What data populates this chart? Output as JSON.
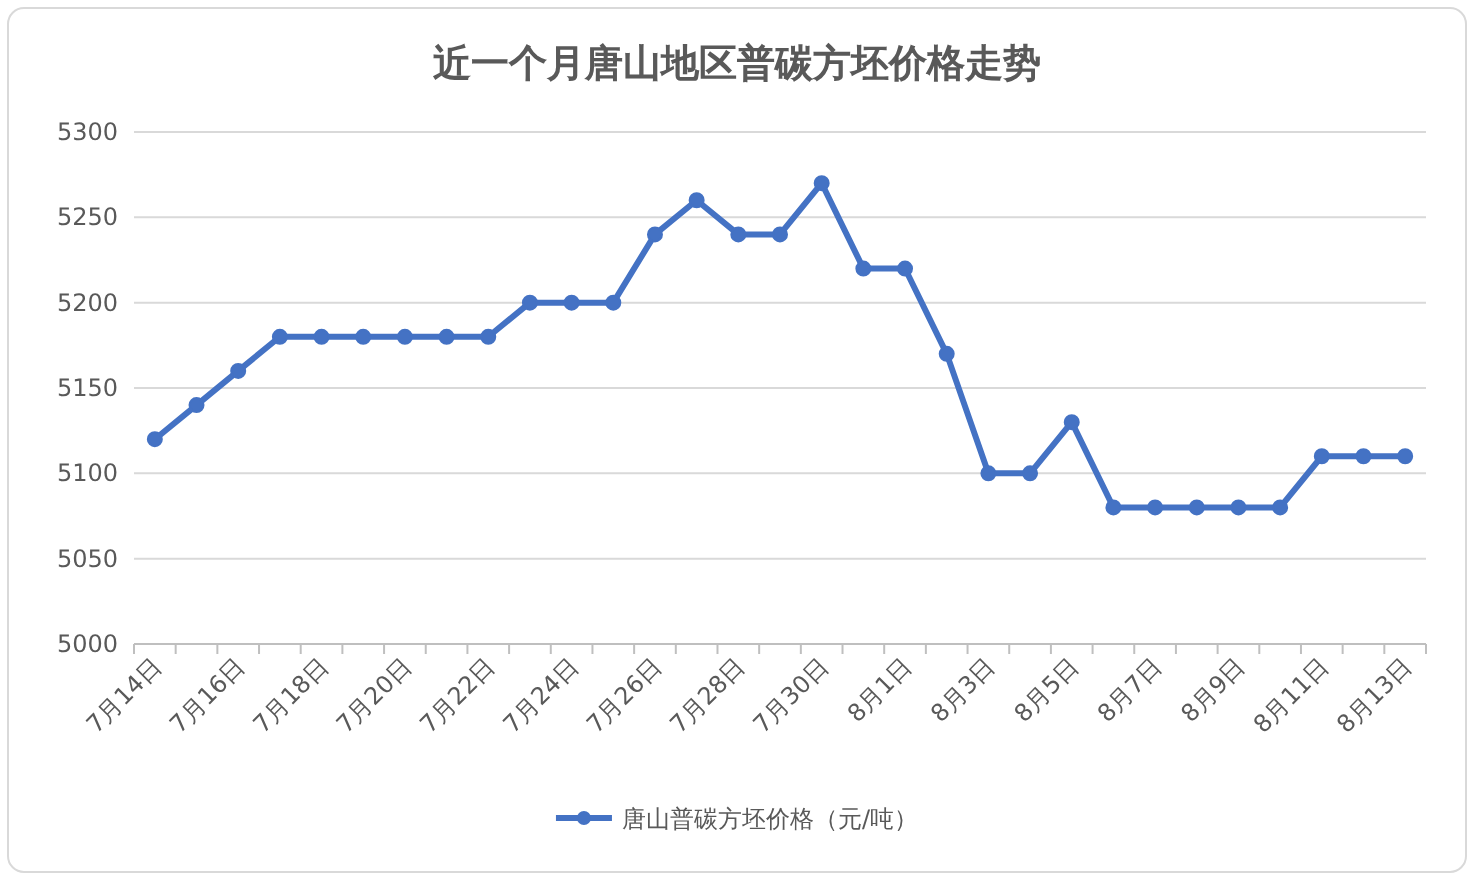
{
  "chart_data": {
    "type": "line",
    "title": "近一个月唐山地区普碳方坯价格走势",
    "categories": [
      "7月14日",
      null,
      "7月16日",
      null,
      "7月18日",
      null,
      "7月20日",
      null,
      "7月22日",
      null,
      "7月24日",
      null,
      "7月26日",
      null,
      "7月28日",
      null,
      "7月30日",
      null,
      "8月1日",
      null,
      "8月3日",
      null,
      "8月5日",
      null,
      "8月7日",
      null,
      "8月9日",
      null,
      "8月11日",
      null,
      "8月13日"
    ],
    "series": [
      {
        "name": "唐山普碳方坯价格（元/吨）",
        "color": "#4472c4",
        "values": [
          5120,
          5140,
          5160,
          5180,
          5180,
          5180,
          5180,
          5180,
          5180,
          5200,
          5200,
          5200,
          5240,
          5260,
          5240,
          5240,
          5270,
          5220,
          5220,
          5170,
          5100,
          5100,
          5130,
          5080,
          5080,
          5080,
          5080,
          5080,
          5110,
          5110,
          5110
        ]
      }
    ],
    "ylim": [
      5000,
      5300
    ],
    "yticks": [
      5000,
      5050,
      5100,
      5150,
      5200,
      5250,
      5300
    ],
    "grid": "y",
    "legend": "bottom",
    "marker": "circle"
  }
}
